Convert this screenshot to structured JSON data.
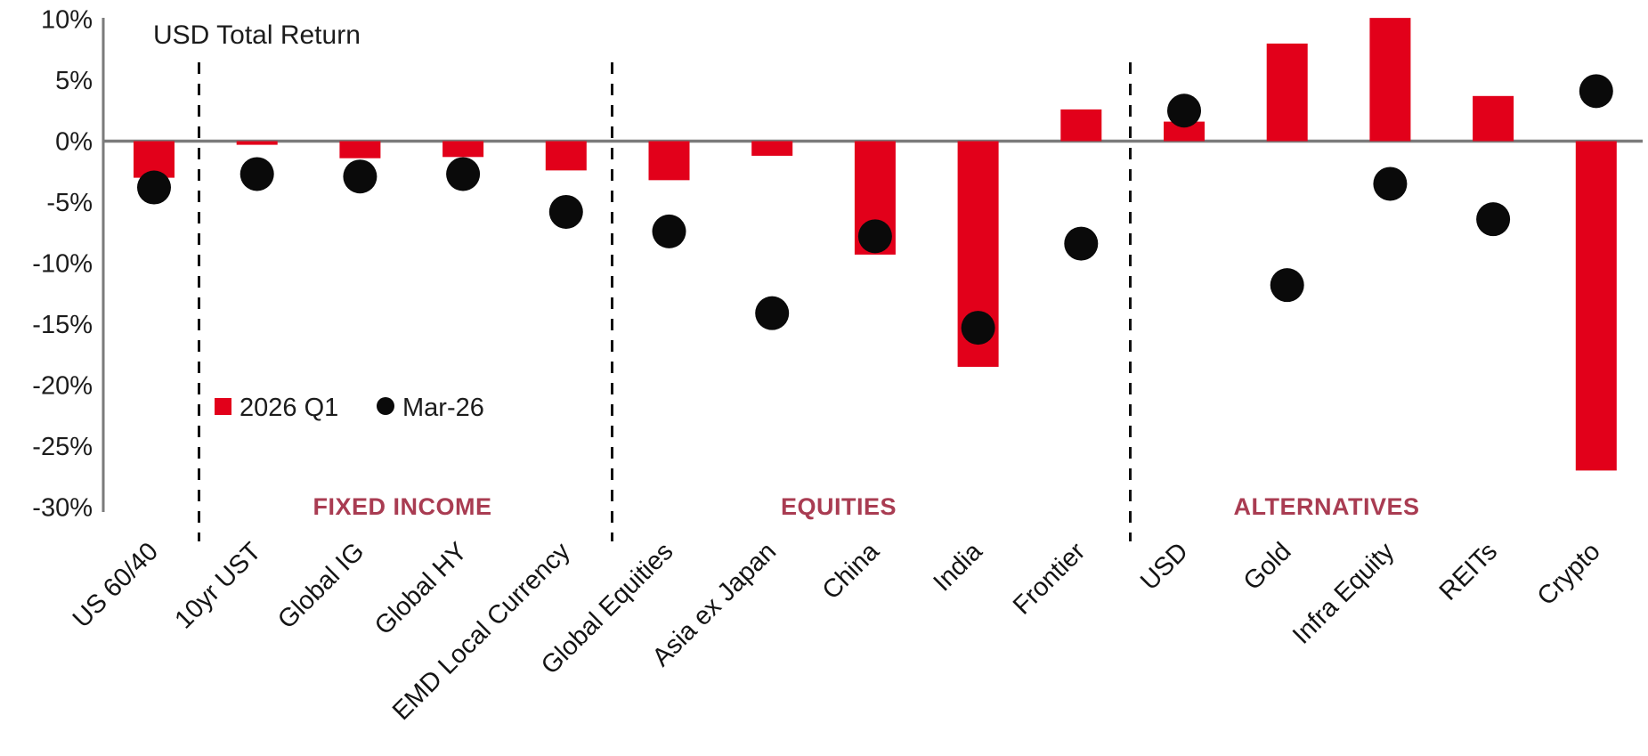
{
  "chart_data": {
    "type": "bar",
    "title": "USD Total Return",
    "categories": [
      "US 60/40",
      "10yr UST",
      "Global IG",
      "Global HY",
      "EMD Local Currency",
      "Global Equities",
      "Asia ex Japan",
      "China",
      "India",
      "Frontier",
      "USD",
      "Gold",
      "Infra Equity",
      "REITs",
      "Crypto"
    ],
    "series": [
      {
        "name": "2026 Q1",
        "type": "bar",
        "color": "#e2001a",
        "values": [
          -3.0,
          -0.3,
          -1.4,
          -1.3,
          -2.4,
          -3.2,
          -1.2,
          -9.3,
          -18.5,
          2.6,
          1.6,
          8.0,
          10.1,
          3.7,
          -27.0
        ]
      },
      {
        "name": "Mar-26",
        "type": "scatter",
        "color": "#0a0a0a",
        "values": [
          -3.8,
          -2.7,
          -2.9,
          -2.7,
          -5.8,
          -7.4,
          -14.1,
          -7.8,
          -15.3,
          -8.4,
          2.5,
          -11.8,
          -3.5,
          -6.4,
          4.1
        ]
      }
    ],
    "sections": [
      {
        "label": "FIXED INCOME",
        "categories": [
          "10yr UST",
          "Global IG",
          "Global HY",
          "EMD Local Currency"
        ]
      },
      {
        "label": "EQUITIES",
        "categories": [
          "Global Equities",
          "Asia ex Japan",
          "China",
          "India",
          "Frontier"
        ]
      },
      {
        "label": "ALTERNATIVES",
        "categories": [
          "USD",
          "Gold",
          "Infra Equity",
          "REITs",
          "Crypto"
        ]
      }
    ],
    "divider_after_categories": [
      "US 60/40",
      "EMD Local Currency",
      "Frontier"
    ],
    "y_axis": {
      "min": -30,
      "max": 10,
      "ticks": [
        10,
        5,
        0,
        -5,
        -10,
        -15,
        -20,
        -25,
        -30
      ],
      "tick_labels": [
        "10%",
        "5%",
        "0%",
        "-5%",
        "-10%",
        "-15%",
        "-20%",
        "-25%",
        "-30%"
      ]
    },
    "legend_position": "inside-left",
    "grid": false,
    "colors": {
      "bar": "#e2001a",
      "dot": "#0a0a0a",
      "axis": "#7b7b7b",
      "divider": "#111111",
      "section_label": "#a93c52",
      "text": "#1c1c1c"
    }
  }
}
